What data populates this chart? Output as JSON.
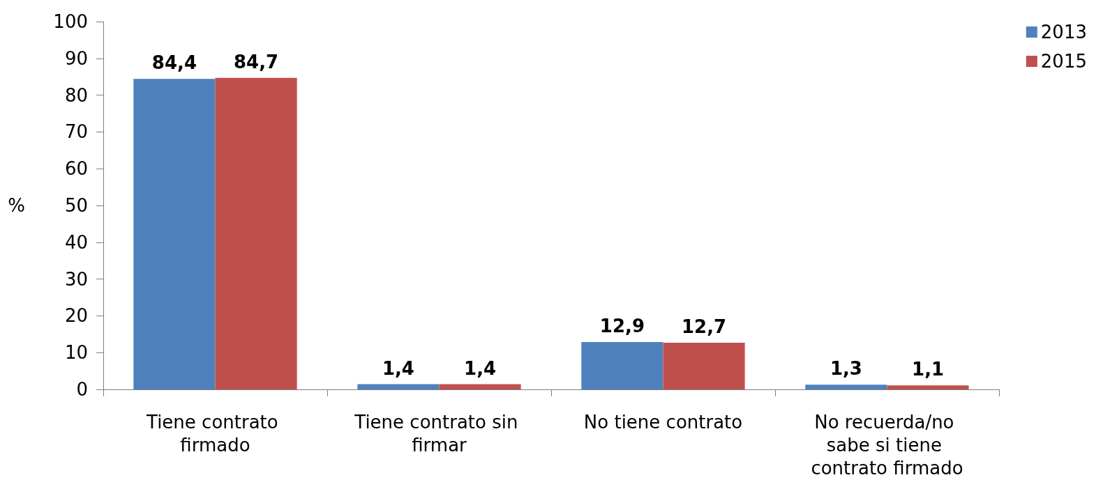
{
  "chart_data": {
    "type": "bar",
    "ylabel": "%",
    "categories": [
      "Tiene contrato firmado",
      "Tiene contrato sin firmar",
      "No tiene contrato",
      "No recuerda/no sabe si tiene contrato firmado"
    ],
    "series": [
      {
        "name": "2013",
        "color": "#4f81bd",
        "values": [
          84.4,
          1.4,
          12.9,
          1.3
        ],
        "value_labels": [
          "84,4",
          "1,4",
          "12,9",
          "1,3"
        ]
      },
      {
        "name": "2015",
        "color": "#c0504d",
        "values": [
          84.7,
          1.4,
          12.7,
          1.1
        ],
        "value_labels": [
          "84,7",
          "1,4",
          "12,7",
          "1,1"
        ]
      }
    ],
    "ylim": [
      0,
      100
    ],
    "yticks": [
      0,
      10,
      20,
      30,
      40,
      50,
      60,
      70,
      80,
      90,
      100
    ],
    "grid": false,
    "legend": "top right"
  }
}
